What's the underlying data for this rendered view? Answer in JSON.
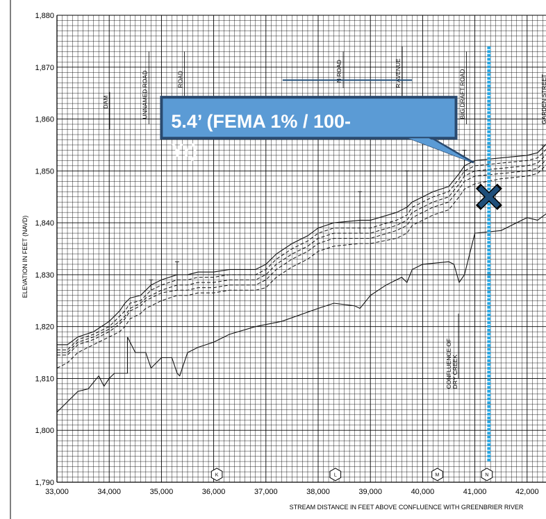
{
  "chart_data": {
    "type": "line",
    "title": "",
    "xlabel": "STREAM DISTANCE IN FEET ABOVE CONFLUENCE WITH GREENBRIER RIVER",
    "ylabel": "ELEVATION IN FEET (NAVD)",
    "xlim": [
      33000,
      42400
    ],
    "ylim": [
      1790,
      1880
    ],
    "grid": true,
    "x_ticks": [
      33000,
      34000,
      35000,
      36000,
      37000,
      38000,
      39000,
      40000,
      41000,
      42000
    ],
    "x_tick_labels": [
      "33,000",
      "34,000",
      "35,000",
      "36,000",
      "37,000",
      "38,000",
      "39,000",
      "40,000",
      "41,000",
      "42,000"
    ],
    "y_ticks": [
      1790,
      1800,
      1810,
      1820,
      1830,
      1840,
      1850,
      1860,
      1870,
      1880
    ],
    "y_tick_labels": [
      "1,790",
      "1,800",
      "1,810",
      "1,820",
      "1,830",
      "1,840",
      "1,850",
      "1,860",
      "1,870",
      "1,880"
    ],
    "series": [
      {
        "style": "solid",
        "x": [
          33000,
          33200,
          33400,
          33700,
          34000,
          34200,
          34300,
          34400,
          34600,
          34700,
          34800,
          35000,
          35300,
          35500,
          35700,
          36000,
          36300,
          36800,
          37000,
          37200,
          37500,
          37800,
          38000,
          38300,
          38800,
          39000,
          39500,
          39700,
          39800,
          40000,
          40200,
          40500,
          40700,
          40800,
          41000,
          41500,
          42000,
          42200,
          42400
        ],
        "y": [
          1816.5,
          1816.5,
          1818,
          1819,
          1821,
          1823,
          1824.5,
          1825.5,
          1826,
          1827,
          1828,
          1829,
          1830,
          1830,
          1830.5,
          1830.5,
          1831,
          1831,
          1832,
          1834,
          1836,
          1837.5,
          1839,
          1840,
          1840.5,
          1840.5,
          1842,
          1843,
          1844,
          1845,
          1846,
          1847,
          1849.5,
          1851,
          1852,
          1852.5,
          1853,
          1853.5,
          1855.5
        ]
      },
      {
        "style": "dashed",
        "x": [
          33000,
          33200,
          33400,
          33700,
          34000,
          34200,
          34300,
          34400,
          34600,
          34700,
          34800,
          35000,
          35300,
          35500,
          35700,
          36000,
          36300,
          36800,
          37000,
          37200,
          37500,
          37800,
          38000,
          38300,
          38800,
          39000,
          39500,
          39700,
          39800,
          40000,
          40200,
          40500,
          40700,
          40800,
          41000,
          41500,
          42000,
          42200,
          42400
        ],
        "y": [
          1815.5,
          1815.5,
          1817.5,
          1818.5,
          1820,
          1822,
          1823,
          1824.5,
          1825,
          1826,
          1827,
          1828,
          1829,
          1829,
          1829.5,
          1829.5,
          1830,
          1830,
          1831,
          1833,
          1835,
          1836.5,
          1838,
          1839,
          1839,
          1839,
          1840.5,
          1841.5,
          1843,
          1844,
          1845,
          1846,
          1848.5,
          1850,
          1851,
          1851.5,
          1852,
          1852.5,
          1854.5
        ]
      },
      {
        "style": "dashed",
        "x": [
          33000,
          33200,
          33400,
          33700,
          34000,
          34200,
          34300,
          34400,
          34600,
          34700,
          34800,
          35000,
          35300,
          35500,
          35700,
          36000,
          36300,
          36800,
          37000,
          37200,
          37500,
          37800,
          38000,
          38300,
          38800,
          39000,
          39500,
          39700,
          39800,
          40000,
          40200,
          40500,
          40700,
          40800,
          41000,
          41500,
          42000,
          42200,
          42400
        ],
        "y": [
          1815,
          1815,
          1817,
          1818,
          1819.5,
          1821,
          1822,
          1823.5,
          1824.5,
          1825.5,
          1826,
          1827,
          1828,
          1828,
          1828.5,
          1828.5,
          1829,
          1829,
          1830,
          1832,
          1834,
          1835.5,
          1837,
          1838,
          1838,
          1838,
          1839.5,
          1840.5,
          1842,
          1843,
          1844,
          1845,
          1847.5,
          1849,
          1850,
          1850.5,
          1851,
          1851.5,
          1853.5
        ]
      },
      {
        "style": "dashed",
        "x": [
          33000,
          33200,
          33400,
          33700,
          34000,
          34200,
          34300,
          34400,
          34600,
          34700,
          34800,
          35000,
          35300,
          35500,
          35700,
          36000,
          36300,
          36800,
          37000,
          37200,
          37500,
          37800,
          38000,
          38300,
          38800,
          39000,
          39500,
          39700,
          39800,
          40000,
          40200,
          40500,
          40700,
          40800,
          41000,
          41500,
          42000,
          42200,
          42400
        ],
        "y": [
          1814.5,
          1814.5,
          1816.5,
          1817.5,
          1819,
          1820.5,
          1821.5,
          1823,
          1824,
          1825,
          1825.5,
          1826.5,
          1827,
          1827,
          1827.5,
          1827.5,
          1828,
          1828,
          1829,
          1831,
          1833,
          1834.5,
          1836,
          1837,
          1837,
          1837,
          1838.5,
          1839.5,
          1841,
          1842,
          1843,
          1844,
          1846.5,
          1848,
          1849,
          1849.5,
          1850,
          1850.5,
          1852.5
        ]
      },
      {
        "style": "dashed",
        "x": [
          33000,
          33200,
          33400,
          33700,
          34000,
          34200,
          34300,
          34400,
          34600,
          34700,
          34800,
          35000,
          35300,
          35500,
          35700,
          36000,
          36300,
          36800,
          37000,
          37200,
          37500,
          37800,
          38000,
          38300,
          38800,
          39000,
          39500,
          39700,
          39800,
          40000,
          40200,
          40500,
          40700,
          40800,
          41000,
          41500,
          42000,
          42200,
          42400
        ],
        "y": [
          1812,
          1813,
          1815,
          1816.5,
          1818,
          1819,
          1820,
          1821.5,
          1822.5,
          1823.5,
          1824,
          1825,
          1826,
          1826,
          1826.5,
          1826.5,
          1827,
          1827,
          1827.5,
          1829.5,
          1831.5,
          1833,
          1834.5,
          1835.5,
          1836,
          1836,
          1837,
          1838,
          1839.5,
          1840.5,
          1841.5,
          1842.5,
          1845,
          1846.5,
          1847.5,
          1848.5,
          1849,
          1849.5,
          1851.5
        ]
      },
      {
        "style": "solid",
        "x": [
          33000,
          33200,
          33400,
          33600,
          33800,
          33900,
          34000,
          34100,
          34200,
          34350,
          34350,
          34500,
          34700,
          34800,
          34900,
          35000,
          35200,
          35300,
          35350,
          35500,
          35700,
          36000,
          36300,
          36800,
          37300,
          38000,
          38300,
          38700,
          38800,
          39000,
          39300,
          39600,
          39700,
          39800,
          40000,
          40500,
          40600,
          40700,
          40800,
          41000,
          41500,
          42000,
          42200,
          42400
        ],
        "y": [
          1803.5,
          1805.5,
          1807.5,
          1808,
          1810.5,
          1808.5,
          1810,
          1811,
          1811,
          1811,
          1818,
          1815,
          1815,
          1812,
          1813,
          1814,
          1814,
          1811,
          1810.5,
          1815,
          1816,
          1817,
          1818.5,
          1820,
          1821,
          1823.5,
          1824.5,
          1824,
          1823.5,
          1826,
          1828,
          1829.5,
          1828.5,
          1831,
          1832,
          1832.5,
          1832,
          1828.5,
          1830,
          1838,
          1838.5,
          1841,
          1840.5,
          1842
        ]
      }
    ],
    "cross_sections": [
      "K",
      "L",
      "M",
      "N"
    ],
    "road_labels": [
      "DAM",
      "UNNAMED ROAD",
      "ROAD",
      "N ROAD",
      "R AVENUE",
      "BIG DRAFT ROAD",
      "GARDEN STREET"
    ],
    "confluence_label": [
      "CONFLUENCE OF",
      "DRY CREEK"
    ],
    "annotation": {
      "text_line1": "5.4’ (FEMA 1% / 100-",
      "text_line2": "Yr)",
      "marker_x": 41270,
      "marker_y": 1845,
      "pointer_x": 40980,
      "pointer_y": 1851.6,
      "vline_x": 41270,
      "vline_y_range": [
        1794,
        1874
      ],
      "callout_color": "#5b9bd5",
      "callout_border": "#2a4a6f",
      "vline_color": "#26a6e4",
      "marker_color": "#1f4e79"
    }
  }
}
